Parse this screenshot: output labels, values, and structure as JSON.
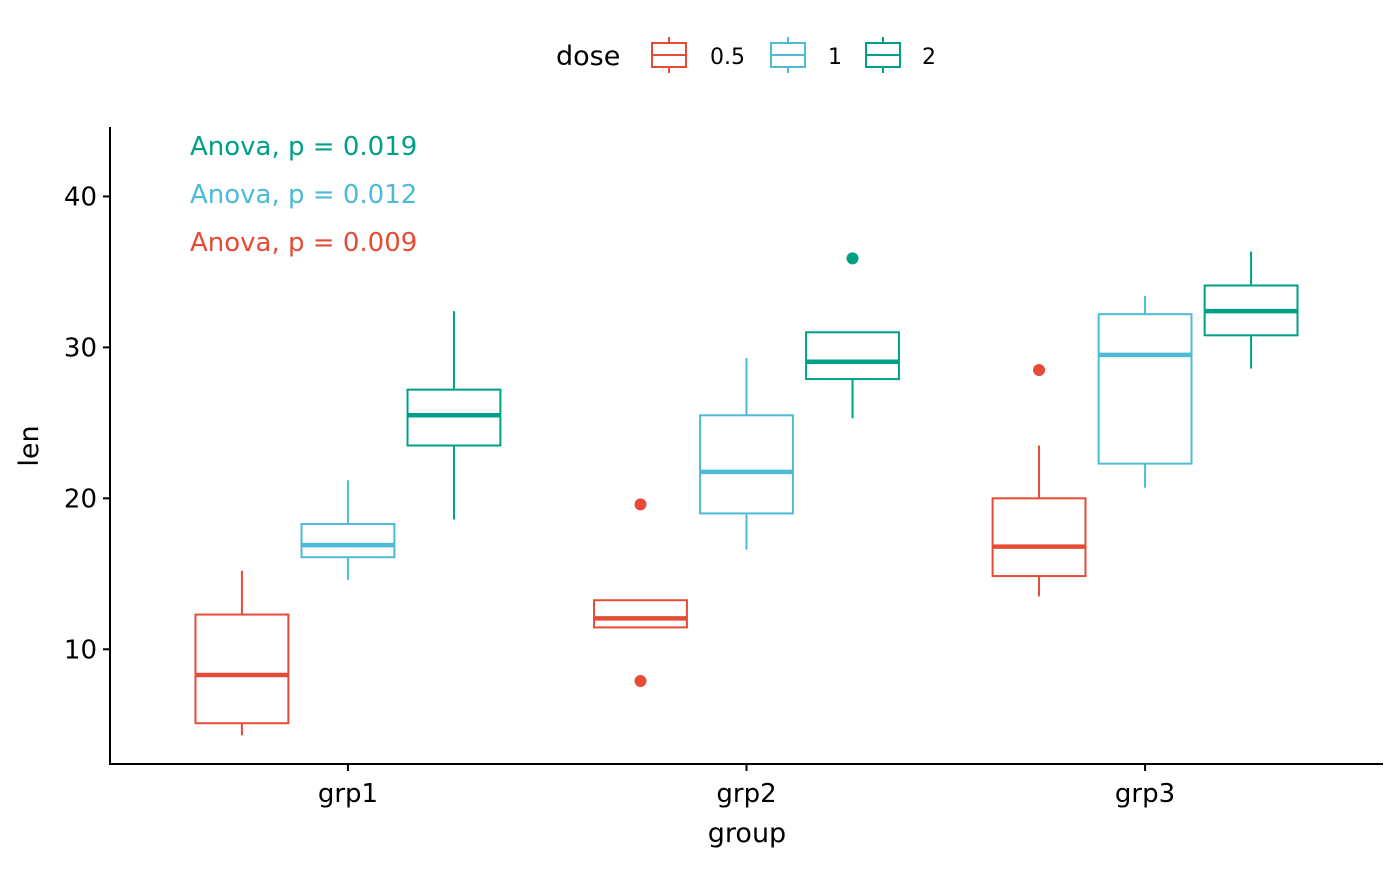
{
  "chart_data": {
    "type": "box",
    "xlabel": "group",
    "ylabel": "len",
    "categories": [
      "grp1",
      "grp2",
      "grp3"
    ],
    "ylim": [
      2.4,
      44.6
    ],
    "yticks": [
      10,
      20,
      30,
      40
    ],
    "grid": false,
    "legend": {
      "title": "dose",
      "placement": "top",
      "entries": [
        "0.5",
        "1",
        "2"
      ]
    },
    "colors": {
      "0.5": "#E64B35",
      "1": "#4DBBD5",
      "2": "#00A087"
    },
    "series": [
      {
        "name": "0.5",
        "boxes": [
          {
            "category": "grp1",
            "whisker_low": 4.3,
            "q1": 5.1,
            "median": 8.3,
            "q3": 12.3,
            "whisker_high": 15.2,
            "outliers": []
          },
          {
            "category": "grp2",
            "whisker_low": 11.45,
            "q1": 11.45,
            "median": 12.05,
            "q3": 13.25,
            "whisker_high": 13.25,
            "outliers": [
              19.6,
              7.9
            ]
          },
          {
            "category": "grp3",
            "whisker_low": 13.5,
            "q1": 14.85,
            "median": 16.8,
            "q3": 20.0,
            "whisker_high": 23.5,
            "outliers": [
              28.5
            ]
          }
        ]
      },
      {
        "name": "1",
        "boxes": [
          {
            "category": "grp1",
            "whisker_low": 14.6,
            "q1": 16.1,
            "median": 16.9,
            "q3": 18.3,
            "whisker_high": 21.2,
            "outliers": []
          },
          {
            "category": "grp2",
            "whisker_low": 16.6,
            "q1": 19.0,
            "median": 21.75,
            "q3": 25.5,
            "whisker_high": 29.3,
            "outliers": []
          },
          {
            "category": "grp3",
            "whisker_low": 20.7,
            "q1": 22.3,
            "median": 29.5,
            "q3": 32.2,
            "whisker_high": 33.4,
            "outliers": []
          }
        ]
      },
      {
        "name": "2",
        "boxes": [
          {
            "category": "grp1",
            "whisker_low": 18.6,
            "q1": 23.5,
            "median": 25.5,
            "q3": 27.2,
            "whisker_high": 32.4,
            "outliers": []
          },
          {
            "category": "grp2",
            "whisker_low": 25.3,
            "q1": 27.9,
            "median": 29.05,
            "q3": 31.0,
            "whisker_high": 31.0,
            "outliers": [
              35.9
            ]
          },
          {
            "category": "grp3",
            "whisker_low": 28.6,
            "q1": 30.8,
            "median": 32.4,
            "q3": 34.1,
            "whisker_high": 36.35,
            "outliers": []
          }
        ]
      }
    ],
    "annotations": [
      {
        "text": "Anova, p = 0.019",
        "series": "2"
      },
      {
        "text": "Anova, p = 0.012",
        "series": "1"
      },
      {
        "text": "Anova, p = 0.009",
        "series": "0.5"
      }
    ]
  }
}
